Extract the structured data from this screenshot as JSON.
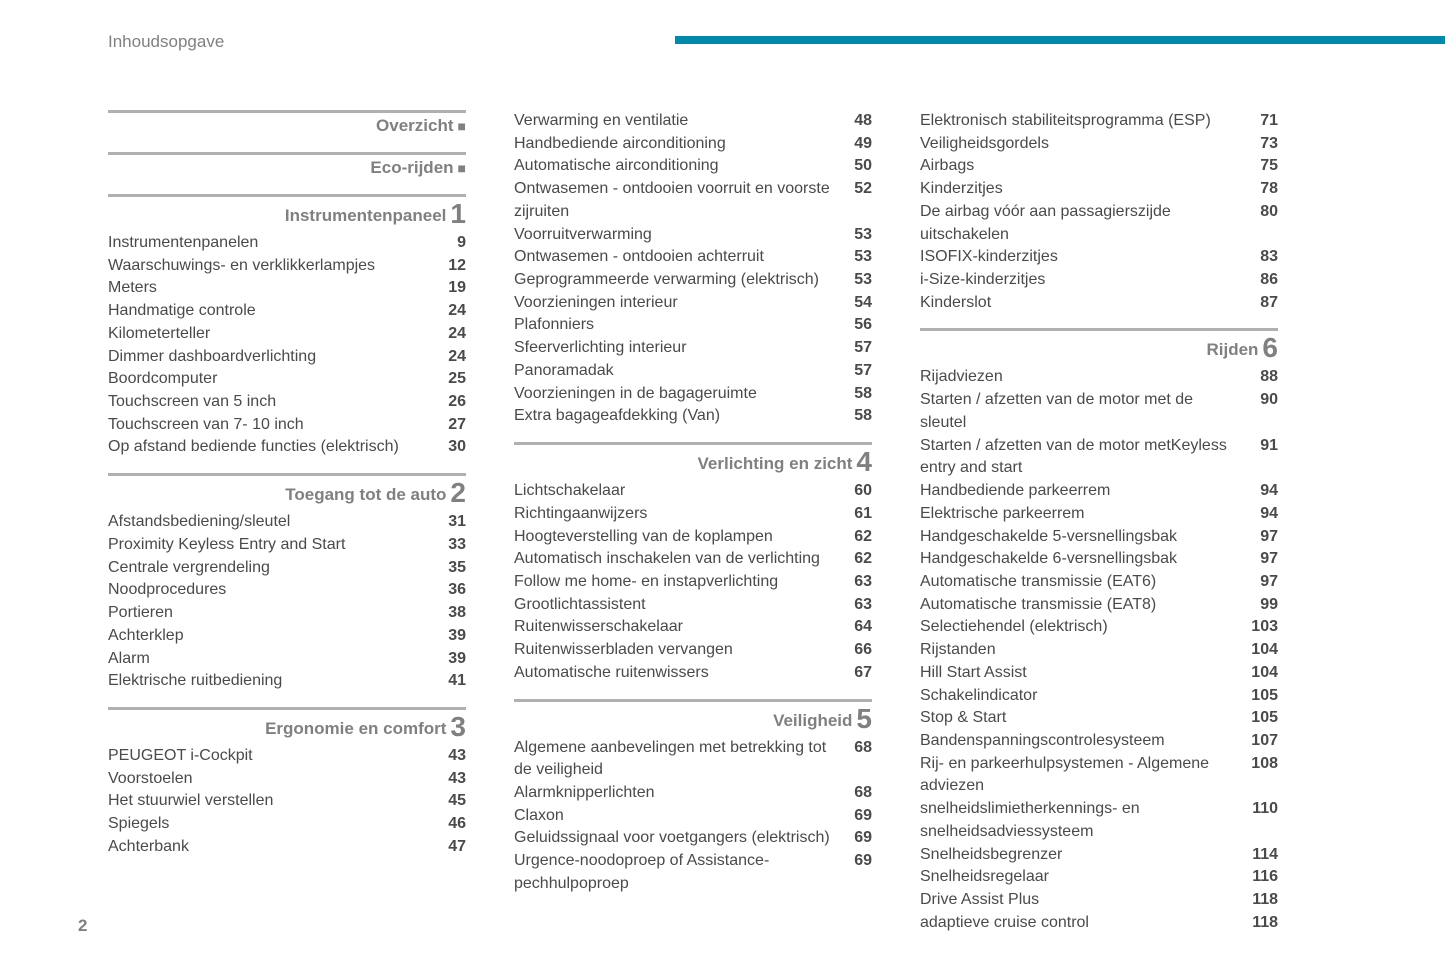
{
  "page_title": "Inhoudsopgave",
  "footer_page": "2",
  "header_bar_color": "#0089a8",
  "divider_color": "#b0b0b0",
  "columns": [
    {
      "sections": [
        {
          "title": "Overzicht",
          "bullet": true,
          "entries": []
        },
        {
          "title": "Eco-rijden",
          "bullet": true,
          "entries": []
        },
        {
          "title": "Instrumentenpaneel",
          "num": "1",
          "entries": [
            {
              "label": "Instrumentenpanelen",
              "page": "9"
            },
            {
              "label": "Waarschuwings- en verklikkerlampjes",
              "page": "12"
            },
            {
              "label": "Meters",
              "page": "19"
            },
            {
              "label": "Handmatige controle",
              "page": "24"
            },
            {
              "label": "Kilometerteller",
              "page": "24"
            },
            {
              "label": "Dimmer dashboardverlichting",
              "page": "24"
            },
            {
              "label": "Boordcomputer",
              "page": "25"
            },
            {
              "label": "Touchscreen van 5 inch",
              "page": "26"
            },
            {
              "label": "Touchscreen van 7- 10 inch",
              "page": "27"
            },
            {
              "label": "Op afstand bediende functies (elektrisch)",
              "page": "30"
            }
          ]
        },
        {
          "title": "Toegang tot de auto",
          "num": "2",
          "entries": [
            {
              "label": "Afstandsbediening/sleutel",
              "page": "31"
            },
            {
              "label": "Proximity Keyless Entry and Start",
              "page": "33"
            },
            {
              "label": "Centrale vergrendeling",
              "page": "35"
            },
            {
              "label": "Noodprocedures",
              "page": "36"
            },
            {
              "label": "Portieren",
              "page": "38"
            },
            {
              "label": "Achterklep",
              "page": "39"
            },
            {
              "label": "Alarm",
              "page": "39"
            },
            {
              "label": "Elektrische ruitbediening",
              "page": "41"
            }
          ]
        },
        {
          "title": "Ergonomie en comfort",
          "num": "3",
          "entries": [
            {
              "label": "PEUGEOT i-Cockpit",
              "page": "43"
            },
            {
              "label": "Voorstoelen",
              "page": "43"
            },
            {
              "label": "Het stuurwiel verstellen",
              "page": "45"
            },
            {
              "label": "Spiegels",
              "page": "46"
            },
            {
              "label": "Achterbank",
              "page": "47"
            }
          ]
        }
      ]
    },
    {
      "sections": [
        {
          "title": "",
          "continue": true,
          "entries": [
            {
              "label": "Verwarming en ventilatie",
              "page": "48"
            },
            {
              "label": "Handbediende airconditioning",
              "page": "49"
            },
            {
              "label": "Automatische airconditioning",
              "page": "50"
            },
            {
              "label": "Ontwasemen - ontdooien voorruit en voorste zijruiten",
              "page": "52"
            },
            {
              "label": "Voorruitverwarming",
              "page": "53"
            },
            {
              "label": "Ontwasemen - ontdooien achterruit",
              "page": "53"
            },
            {
              "label": "Geprogrammeerde verwarming (elektrisch)",
              "page": "53"
            },
            {
              "label": "Voorzieningen interieur",
              "page": "54"
            },
            {
              "label": "Plafonniers",
              "page": "56"
            },
            {
              "label": "Sfeerverlichting interieur",
              "page": "57"
            },
            {
              "label": "Panoramadak",
              "page": "57"
            },
            {
              "label": "Voorzieningen in de bagageruimte",
              "page": "58"
            },
            {
              "label": "Extra bagageafdekking (Van)",
              "page": "58"
            }
          ]
        },
        {
          "title": "Verlichting en zicht",
          "num": "4",
          "entries": [
            {
              "label": "Lichtschakelaar",
              "page": "60"
            },
            {
              "label": "Richtingaanwijzers",
              "page": "61"
            },
            {
              "label": "Hoogteverstelling van de koplampen",
              "page": "62"
            },
            {
              "label": "Automatisch inschakelen van de verlichting",
              "page": "62"
            },
            {
              "label": "Follow me home- en instapverlichting",
              "page": "63"
            },
            {
              "label": "Grootlichtassistent",
              "page": "63"
            },
            {
              "label": "Ruitenwisserschakelaar",
              "page": "64"
            },
            {
              "label": "Ruitenwisserbladen vervangen",
              "page": "66"
            },
            {
              "label": "Automatische ruitenwissers",
              "page": "67"
            }
          ]
        },
        {
          "title": "Veiligheid",
          "num": "5",
          "entries": [
            {
              "label": "Algemene aanbevelingen met betrekking tot de veiligheid",
              "page": "68"
            },
            {
              "label": "Alarmknipperlichten",
              "page": "68"
            },
            {
              "label": "Claxon",
              "page": "69"
            },
            {
              "label": "Geluidssignaal voor voetgangers (elektrisch)",
              "page": "69"
            },
            {
              "label": "Urgence-noodoproep of Assistance-pechhulpoproep",
              "page": "69"
            }
          ]
        }
      ]
    },
    {
      "sections": [
        {
          "title": "",
          "continue": true,
          "entries": [
            {
              "label": "Elektronisch stabiliteitsprogramma (ESP)",
              "page": "71"
            },
            {
              "label": "Veiligheidsgordels",
              "page": "73"
            },
            {
              "label": "Airbags",
              "page": "75"
            },
            {
              "label": "Kinderzitjes",
              "page": "78"
            },
            {
              "label": "De airbag vóór aan passagierszijde uitschakelen",
              "page": "80"
            },
            {
              "label": "ISOFIX-kinderzitjes",
              "page": "83"
            },
            {
              "label": "i-Size-kinderzitjes",
              "page": "86"
            },
            {
              "label": "Kinderslot",
              "page": "87"
            }
          ]
        },
        {
          "title": "Rijden",
          "num": "6",
          "entries": [
            {
              "label": "Rijadviezen",
              "page": "88"
            },
            {
              "label": "Starten / afzetten van de motor met de sleutel",
              "page": "90"
            },
            {
              "label": "Starten / afzetten van de motor metKeyless entry and start",
              "page": "91"
            },
            {
              "label": "Handbediende parkeerrem",
              "page": "94"
            },
            {
              "label": "Elektrische parkeerrem",
              "page": "94"
            },
            {
              "label": "Handgeschakelde 5-versnellingsbak",
              "page": "97"
            },
            {
              "label": "Handgeschakelde 6-versnellingsbak",
              "page": "97"
            },
            {
              "label": "Automatische transmissie (EAT6)",
              "page": "97"
            },
            {
              "label": "Automatische transmissie (EAT8)",
              "page": "99"
            },
            {
              "label": "Selectiehendel (elektrisch)",
              "page": "103"
            },
            {
              "label": "Rijstanden",
              "page": "104"
            },
            {
              "label": "Hill Start Assist",
              "page": "104"
            },
            {
              "label": "Schakelindicator",
              "page": "105"
            },
            {
              "label": "Stop & Start",
              "page": "105"
            },
            {
              "label": "Bandenspanningscontrolesysteem",
              "page": "107"
            },
            {
              "label": "Rij- en parkeerhulpsystemen - Algemene adviezen",
              "page": "108"
            },
            {
              "label": "snelheidslimietherkennings- en snelheidsadviessysteem",
              "page": "110"
            },
            {
              "label": "Snelheidsbegrenzer",
              "page": "114"
            },
            {
              "label": "Snelheidsregelaar",
              "page": "116"
            },
            {
              "label": "Drive Assist Plus",
              "page": "118"
            },
            {
              "label": "adaptieve cruise control",
              "page": "118"
            }
          ]
        }
      ]
    }
  ]
}
